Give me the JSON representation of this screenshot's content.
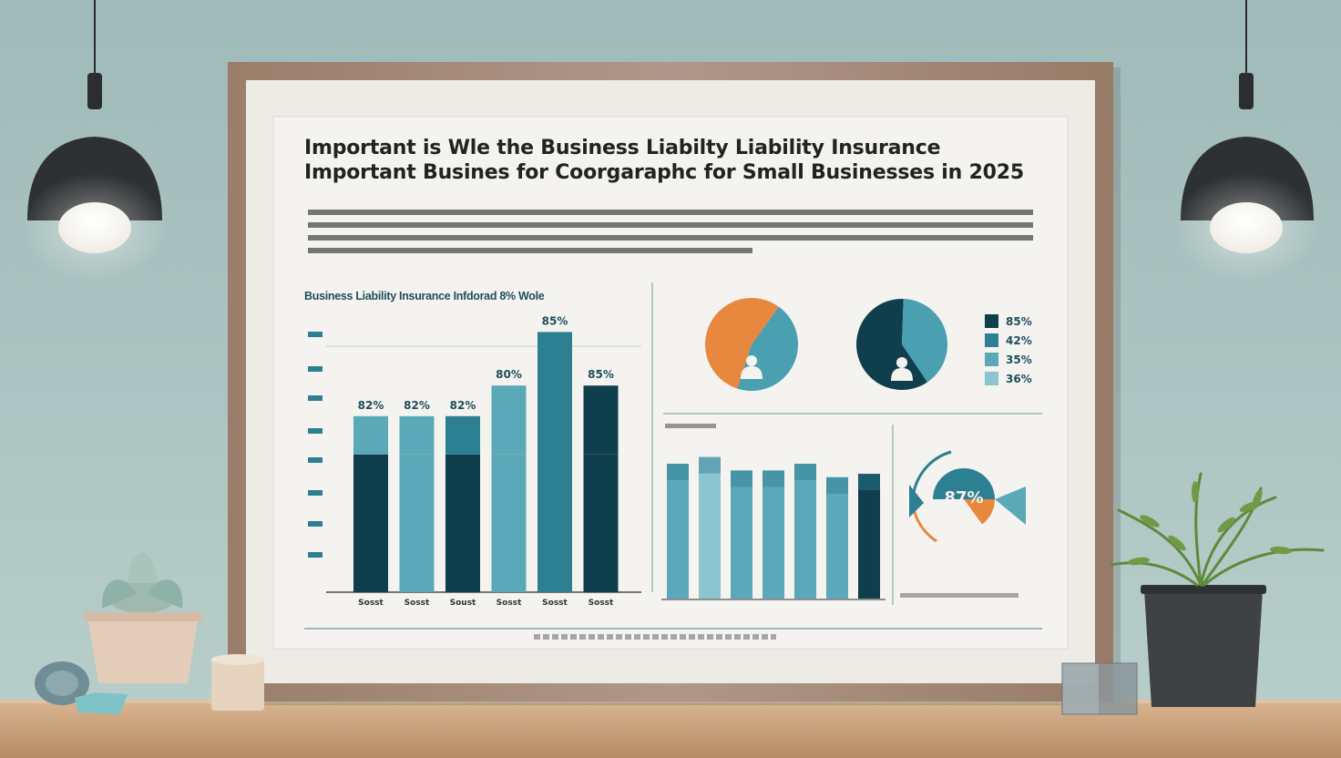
{
  "poster": {
    "title_line1": "Important is Wle the Business Liabilty Liability Insurance",
    "title_line2": "Important Busines for Coorgaraphc for Small Businesses in 2025",
    "bar_chart_title": "Business Liability Insurance Infdorad 8% Wole"
  },
  "chart_data": [
    {
      "type": "bar",
      "title": "Business Liability Insurance Infdorad 8% Wole",
      "categories": [
        "Sosst",
        "Sosst",
        "Soust",
        "Sosst",
        "Sosst",
        "Sosst"
      ],
      "data_labels": [
        "82%",
        "82%",
        "82%",
        "80%",
        "85%",
        "85%"
      ],
      "series": [
        {
          "values": [
            36,
            36,
            36,
            36,
            40,
            36
          ]
        },
        {
          "values": [
            10,
            10,
            10,
            18,
            28,
            18
          ]
        }
      ]
    },
    {
      "type": "pie",
      "segments": [
        {
          "value": 55,
          "color": "#e8883f"
        },
        {
          "value": 45,
          "color": "#4a9fb0"
        }
      ]
    },
    {
      "type": "pie",
      "segments": [
        {
          "value": 60,
          "color": "#0f3e4d"
        },
        {
          "value": 40,
          "color": "#4a9fb0"
        }
      ]
    },
    {
      "type": "bar",
      "categories": [
        "",
        "",
        "",
        "",
        "",
        "",
        ""
      ],
      "series": [
        {
          "values": [
            80,
            84,
            76,
            76,
            80,
            72,
            74
          ]
        }
      ]
    },
    {
      "type": "pie",
      "segments": [
        {
          "value": 50,
          "color": "#2d7f92"
        },
        {
          "value": 15,
          "color": "#e8883f"
        },
        {
          "value": 35,
          "color": "#f4f2ee"
        }
      ],
      "center_label": "87%"
    }
  ],
  "legend": {
    "items": [
      {
        "label": "85%",
        "color": "#0f3e4d"
      },
      {
        "label": "42%",
        "color": "#2d7f92"
      },
      {
        "label": "35%",
        "color": "#5aa8b8"
      },
      {
        "label": "36%",
        "color": "#8cc4cf"
      }
    ]
  },
  "colors": {
    "wall": "#a9c2bf",
    "frame": "#a58a74",
    "poster": "#f3f2ee",
    "dark_teal": "#0f3e4d",
    "teal": "#2d7f92",
    "light_teal": "#5aa8b8",
    "orange": "#e8883f",
    "table": "#c9a27e"
  },
  "icons": [
    "pendant-lamp-icon",
    "succulent-plant-icon",
    "fern-plant-icon",
    "person-icon"
  ]
}
